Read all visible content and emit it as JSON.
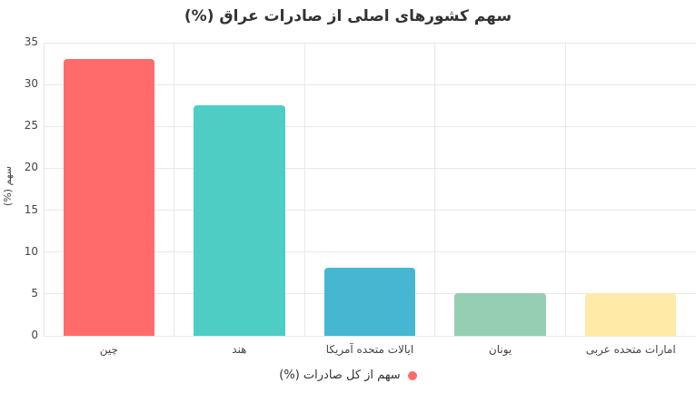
{
  "title": "سهم کشورهای اصلی از صادرات عراق (%)",
  "chart_data": {
    "type": "bar",
    "title": "سهم کشورهای اصلی از صادرات عراق (%)",
    "categories": [
      "چین",
      "هند",
      "ایالات متحده آمریکا",
      "یونان",
      "امارات متحده عربی"
    ],
    "values": [
      33,
      27.5,
      8.1,
      5.1,
      5.1
    ],
    "bar_colors": [
      "#FF6B6B",
      "#4ECDC4",
      "#45B7D1",
      "#96CEB4",
      "#FFEAA7"
    ],
    "xlabel": "",
    "ylabel": "سهم (%)",
    "ylim": [
      0,
      35
    ],
    "yticks": [
      0,
      5,
      10,
      15,
      20,
      25,
      30,
      35
    ],
    "grid": true,
    "legend": {
      "label": "سهم از کل صادرات (%)",
      "marker": "circle",
      "marker_color": "#FF6B6B",
      "position": "bottom-center"
    }
  },
  "colors": {
    "background": "#ffffff",
    "grid": "#e8e8e8",
    "title_text": "#333333",
    "tick_text": "#444444",
    "legend_text": "#333333"
  }
}
